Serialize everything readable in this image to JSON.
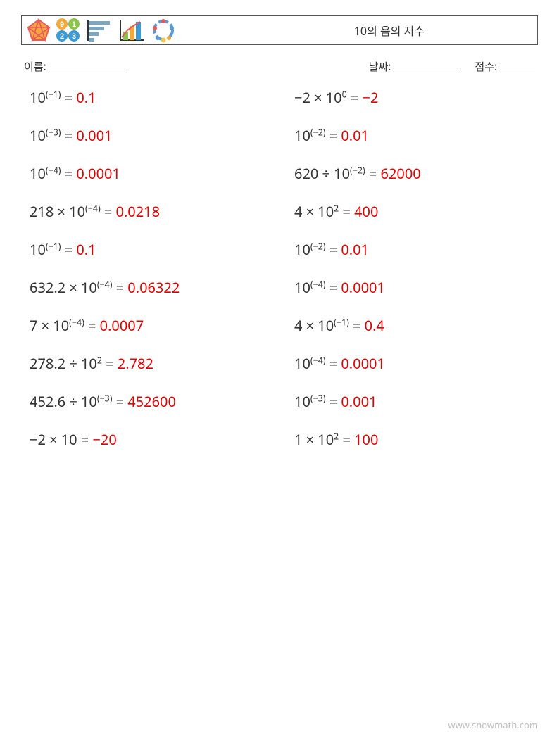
{
  "title": "10의 음의 지수",
  "meta": {
    "name_label": "이름:",
    "name_blank_width": 110,
    "date_label": "날짜:",
    "date_blank_width": 95,
    "score_label": "점수:",
    "score_blank_width": 50
  },
  "colors": {
    "text": "#333333",
    "answer": "#e30000",
    "border": "#555555",
    "footer": "#bfbfbf",
    "background": "#ffffff"
  },
  "typography": {
    "title_fontsize": 16,
    "meta_fontsize": 15,
    "equation_fontsize": 20,
    "footer_fontsize": 13
  },
  "layout": {
    "row_gap": 30
  },
  "logos": {
    "pentagon": {
      "fill": "#f6a540",
      "stroke": "#e85a5a"
    },
    "squares": {
      "fills": [
        "#f2a93b",
        "#8cc34b",
        "#3b9bd6",
        "#3b9bd6"
      ],
      "digits": [
        "9",
        "1",
        "2",
        "3"
      ],
      "digit_color": "#ffffff"
    },
    "hbars": {
      "fill": "#7aa6c2"
    },
    "linebar": {
      "bars": [
        "#8cc34b",
        "#f2a93b",
        "#3b9bd6"
      ],
      "line": "#e85a5a",
      "axis": "#333333"
    },
    "cycle": {
      "colors": [
        "#e85a5a",
        "#5a9bd6",
        "#f2a93b",
        "#5a9bd6",
        "#e85a5a"
      ],
      "dot": "#f2c94c"
    }
  },
  "columns": [
    [
      {
        "base": "10",
        "exp": "(−1)",
        "op": "",
        "lhs2": "",
        "eq": " = ",
        "ans": "0.1"
      },
      {
        "base": "10",
        "exp": "(−3)",
        "op": "",
        "lhs2": "",
        "eq": " = ",
        "ans": "0.001"
      },
      {
        "base": "10",
        "exp": "(−4)",
        "op": "",
        "lhs2": "",
        "eq": " = ",
        "ans": "0.0001"
      },
      {
        "lhs1": "218 × ",
        "base": "10",
        "exp": "(−4)",
        "eq": " = ",
        "ans": "0.0218"
      },
      {
        "base": "10",
        "exp": "(−1)",
        "eq": " = ",
        "ans": "0.1"
      },
      {
        "lhs1": "632.2 × ",
        "base": "10",
        "exp": "(−4)",
        "eq": " = ",
        "ans": "0.06322"
      },
      {
        "lhs1": "7 × ",
        "base": "10",
        "exp": "(−4)",
        "eq": " = ",
        "ans": "0.0007"
      },
      {
        "lhs1": "278.2 ÷ ",
        "base": "10",
        "exp": "2",
        "eq": " = ",
        "ans": "2.782"
      },
      {
        "lhs1": "452.6 ÷ ",
        "base": "10",
        "exp": "(−3)",
        "eq": " = ",
        "ans": "452600"
      },
      {
        "plain": "−2 × 10 = ",
        "ans": "−20"
      }
    ],
    [
      {
        "lhs1": "−2 × ",
        "base": "10",
        "exp": "0",
        "eq": " = ",
        "ans": "−2"
      },
      {
        "base": "10",
        "exp": "(−2)",
        "eq": " = ",
        "ans": "0.01"
      },
      {
        "lhs1": "620 ÷ ",
        "base": "10",
        "exp": "(−2)",
        "eq": " = ",
        "ans": "62000"
      },
      {
        "lhs1": "4 × ",
        "base": "10",
        "exp": "2",
        "eq": " = ",
        "ans": "400"
      },
      {
        "base": "10",
        "exp": "(−2)",
        "eq": " = ",
        "ans": "0.01"
      },
      {
        "base": "10",
        "exp": "(−4)",
        "eq": " = ",
        "ans": "0.0001"
      },
      {
        "lhs1": "4 × ",
        "base": "10",
        "exp": "(−1)",
        "eq": " = ",
        "ans": "0.4"
      },
      {
        "base": "10",
        "exp": "(−4)",
        "eq": " = ",
        "ans": "0.0001"
      },
      {
        "base": "10",
        "exp": "(−3)",
        "eq": " = ",
        "ans": "0.001"
      },
      {
        "lhs1": "1 × ",
        "base": "10",
        "exp": "2",
        "eq": " = ",
        "ans": "100"
      }
    ]
  ],
  "footer": "www.snowmath.com"
}
